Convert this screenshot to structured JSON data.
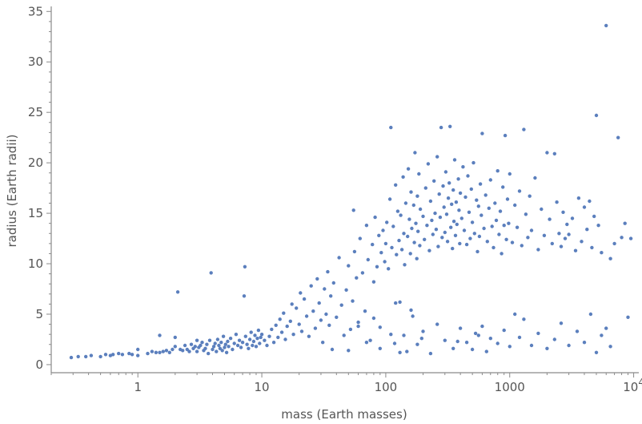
{
  "chart_data": {
    "type": "scatter",
    "title": "",
    "xlabel": "mass (Earth masses)",
    "ylabel": "radius (Earth radii)",
    "x_scale": "log",
    "xlim": [
      0.2,
      11000
    ],
    "ylim": [
      -0.8,
      35.5
    ],
    "x_ticks": [
      {
        "value": 1,
        "label": "1"
      },
      {
        "value": 10,
        "label": "10"
      },
      {
        "value": 100,
        "label": "100"
      },
      {
        "value": 1000,
        "label": "1000"
      },
      {
        "value": 10000,
        "label": "10",
        "exponent": "4"
      }
    ],
    "y_ticks": [
      0,
      5,
      10,
      15,
      20,
      25,
      30,
      35
    ],
    "grid": false,
    "point_color": "#5b7fbd",
    "points": [
      [
        0.29,
        0.7
      ],
      [
        0.33,
        0.8
      ],
      [
        0.38,
        0.8
      ],
      [
        0.42,
        0.9
      ],
      [
        0.5,
        0.8
      ],
      [
        0.55,
        1.0
      ],
      [
        0.6,
        0.9
      ],
      [
        0.63,
        1.0
      ],
      [
        0.7,
        1.1
      ],
      [
        0.75,
        1.0
      ],
      [
        0.85,
        1.1
      ],
      [
        0.9,
        1.0
      ],
      [
        1.0,
        0.9
      ],
      [
        1.0,
        1.5
      ],
      [
        1.2,
        1.1
      ],
      [
        1.3,
        1.3
      ],
      [
        1.4,
        1.2
      ],
      [
        1.5,
        1.2
      ],
      [
        1.5,
        2.9
      ],
      [
        1.6,
        1.3
      ],
      [
        1.7,
        1.4
      ],
      [
        1.8,
        1.2
      ],
      [
        1.9,
        1.5
      ],
      [
        2.0,
        1.8
      ],
      [
        2.0,
        2.7
      ],
      [
        2.1,
        7.2
      ],
      [
        2.2,
        1.5
      ],
      [
        2.3,
        1.4
      ],
      [
        2.4,
        1.9
      ],
      [
        2.5,
        1.5
      ],
      [
        2.6,
        1.3
      ],
      [
        2.7,
        2.0
      ],
      [
        2.8,
        1.6
      ],
      [
        2.9,
        1.8
      ],
      [
        3.0,
        1.3
      ],
      [
        3.0,
        2.4
      ],
      [
        3.1,
        1.7
      ],
      [
        3.2,
        1.9
      ],
      [
        3.3,
        2.2
      ],
      [
        3.4,
        1.4
      ],
      [
        3.5,
        1.6
      ],
      [
        3.6,
        2.0
      ],
      [
        3.7,
        1.1
      ],
      [
        3.8,
        2.4
      ],
      [
        3.9,
        9.1
      ],
      [
        4.0,
        1.5
      ],
      [
        4.1,
        1.8
      ],
      [
        4.2,
        2.1
      ],
      [
        4.3,
        1.3
      ],
      [
        4.4,
        2.5
      ],
      [
        4.5,
        1.9
      ],
      [
        4.6,
        1.6
      ],
      [
        4.7,
        2.2
      ],
      [
        4.8,
        1.4
      ],
      [
        4.9,
        2.8
      ],
      [
        5.0,
        1.7
      ],
      [
        5.1,
        2.0
      ],
      [
        5.2,
        1.2
      ],
      [
        5.3,
        2.3
      ],
      [
        5.4,
        1.8
      ],
      [
        5.6,
        2.6
      ],
      [
        5.8,
        1.5
      ],
      [
        6.0,
        2.1
      ],
      [
        6.2,
        3.0
      ],
      [
        6.4,
        1.9
      ],
      [
        6.6,
        2.4
      ],
      [
        6.8,
        1.7
      ],
      [
        7.0,
        2.2
      ],
      [
        7.2,
        6.8
      ],
      [
        7.3,
        9.7
      ],
      [
        7.4,
        2.8
      ],
      [
        7.6,
        2.0
      ],
      [
        7.8,
        1.6
      ],
      [
        8.0,
        2.5
      ],
      [
        8.2,
        3.2
      ],
      [
        8.4,
        1.9
      ],
      [
        8.6,
        2.3
      ],
      [
        8.8,
        2.9
      ],
      [
        9.0,
        1.8
      ],
      [
        9.2,
        2.6
      ],
      [
        9.4,
        3.4
      ],
      [
        9.6,
        2.1
      ],
      [
        9.8,
        2.7
      ],
      [
        10,
        3.0
      ],
      [
        10.5,
        2.4
      ],
      [
        11,
        1.9
      ],
      [
        11.5,
        2.8
      ],
      [
        12,
        3.5
      ],
      [
        12.5,
        2.2
      ],
      [
        13,
        3.9
      ],
      [
        13.5,
        2.7
      ],
      [
        14,
        4.5
      ],
      [
        14.5,
        3.2
      ],
      [
        15,
        5.1
      ],
      [
        15.5,
        2.5
      ],
      [
        16,
        3.8
      ],
      [
        17,
        4.3
      ],
      [
        17.5,
        6.0
      ],
      [
        18,
        3.0
      ],
      [
        19,
        5.6
      ],
      [
        20,
        4.0
      ],
      [
        20.5,
        7.1
      ],
      [
        21,
        3.3
      ],
      [
        22,
        6.5
      ],
      [
        23,
        4.8
      ],
      [
        24,
        2.8
      ],
      [
        25,
        7.8
      ],
      [
        26,
        5.3
      ],
      [
        27,
        3.6
      ],
      [
        28,
        8.5
      ],
      [
        29,
        6.1
      ],
      [
        30,
        4.4
      ],
      [
        31,
        2.2
      ],
      [
        32,
        7.5
      ],
      [
        33,
        5.0
      ],
      [
        34,
        9.2
      ],
      [
        35,
        3.9
      ],
      [
        36,
        6.8
      ],
      [
        37,
        1.5
      ],
      [
        38,
        8.1
      ],
      [
        40,
        4.7
      ],
      [
        42,
        10.6
      ],
      [
        44,
        5.9
      ],
      [
        46,
        2.9
      ],
      [
        48,
        7.4
      ],
      [
        50,
        9.8
      ],
      [
        52,
        3.5
      ],
      [
        54,
        6.3
      ],
      [
        55,
        15.3
      ],
      [
        56,
        11.2
      ],
      [
        58,
        8.6
      ],
      [
        60,
        4.2
      ],
      [
        62,
        12.5
      ],
      [
        65,
        9.1
      ],
      [
        68,
        5.3
      ],
      [
        70,
        13.8
      ],
      [
        72,
        10.4
      ],
      [
        75,
        2.4
      ],
      [
        78,
        11.9
      ],
      [
        80,
        8.2
      ],
      [
        82,
        14.6
      ],
      [
        85,
        9.7
      ],
      [
        88,
        12.8
      ],
      [
        90,
        3.7
      ],
      [
        92,
        11.1
      ],
      [
        95,
        13.3
      ],
      [
        98,
        10.2
      ],
      [
        100,
        12.0
      ],
      [
        102,
        14.1
      ],
      [
        105,
        9.5
      ],
      [
        108,
        16.4
      ],
      [
        110,
        23.5
      ],
      [
        112,
        11.6
      ],
      [
        115,
        13.7
      ],
      [
        118,
        2.1
      ],
      [
        120,
        17.8
      ],
      [
        122,
        10.9
      ],
      [
        125,
        15.2
      ],
      [
        128,
        12.3
      ],
      [
        130,
        6.2
      ],
      [
        132,
        14.8
      ],
      [
        135,
        11.4
      ],
      [
        138,
        18.6
      ],
      [
        140,
        13.0
      ],
      [
        142,
        9.9
      ],
      [
        145,
        16.0
      ],
      [
        148,
        1.3
      ],
      [
        150,
        12.7
      ],
      [
        152,
        19.4
      ],
      [
        155,
        14.4
      ],
      [
        158,
        11.0
      ],
      [
        160,
        17.1
      ],
      [
        162,
        13.5
      ],
      [
        165,
        4.8
      ],
      [
        168,
        15.8
      ],
      [
        170,
        12.1
      ],
      [
        172,
        21.0
      ],
      [
        175,
        14.0
      ],
      [
        178,
        10.5
      ],
      [
        180,
        16.7
      ],
      [
        182,
        13.2
      ],
      [
        185,
        18.9
      ],
      [
        188,
        11.8
      ],
      [
        190,
        15.4
      ],
      [
        195,
        2.6
      ],
      [
        200,
        14.7
      ],
      [
        205,
        12.4
      ],
      [
        210,
        17.5
      ],
      [
        215,
        13.8
      ],
      [
        220,
        19.9
      ],
      [
        225,
        11.3
      ],
      [
        230,
        16.2
      ],
      [
        235,
        14.3
      ],
      [
        240,
        12.9
      ],
      [
        245,
        18.2
      ],
      [
        250,
        15.0
      ],
      [
        255,
        13.4
      ],
      [
        260,
        20.6
      ],
      [
        265,
        11.7
      ],
      [
        270,
        16.9
      ],
      [
        275,
        14.6
      ],
      [
        280,
        23.5
      ],
      [
        285,
        12.6
      ],
      [
        290,
        17.7
      ],
      [
        295,
        15.6
      ],
      [
        300,
        13.1
      ],
      [
        305,
        19.1
      ],
      [
        310,
        14.9
      ],
      [
        315,
        12.2
      ],
      [
        320,
        16.5
      ],
      [
        325,
        18.0
      ],
      [
        330,
        23.6
      ],
      [
        335,
        13.6
      ],
      [
        340,
        15.9
      ],
      [
        345,
        11.5
      ],
      [
        350,
        17.3
      ],
      [
        355,
        14.2
      ],
      [
        360,
        20.3
      ],
      [
        365,
        12.8
      ],
      [
        370,
        16.1
      ],
      [
        375,
        13.9
      ],
      [
        380,
        2.3
      ],
      [
        385,
        18.4
      ],
      [
        390,
        15.3
      ],
      [
        395,
        12.0
      ],
      [
        400,
        17.0
      ],
      [
        410,
        14.5
      ],
      [
        420,
        19.6
      ],
      [
        430,
        13.3
      ],
      [
        440,
        16.6
      ],
      [
        450,
        11.9
      ],
      [
        460,
        18.7
      ],
      [
        470,
        15.1
      ],
      [
        480,
        12.5
      ],
      [
        490,
        17.4
      ],
      [
        500,
        14.1
      ],
      [
        510,
        20.0
      ],
      [
        520,
        13.0
      ],
      [
        530,
        3.1
      ],
      [
        540,
        16.3
      ],
      [
        550,
        11.2
      ],
      [
        560,
        15.7
      ],
      [
        570,
        12.7
      ],
      [
        580,
        17.9
      ],
      [
        590,
        14.8
      ],
      [
        600,
        22.9
      ],
      [
        620,
        13.5
      ],
      [
        640,
        16.8
      ],
      [
        660,
        12.2
      ],
      [
        680,
        15.5
      ],
      [
        700,
        18.3
      ],
      [
        720,
        13.7
      ],
      [
        740,
        11.6
      ],
      [
        760,
        16.0
      ],
      [
        780,
        14.3
      ],
      [
        800,
        19.2
      ],
      [
        820,
        12.9
      ],
      [
        840,
        15.2
      ],
      [
        860,
        11.0
      ],
      [
        880,
        17.6
      ],
      [
        900,
        13.8
      ],
      [
        920,
        22.7
      ],
      [
        940,
        12.4
      ],
      [
        960,
        16.4
      ],
      [
        980,
        14.0
      ],
      [
        1000,
        18.9
      ],
      [
        1050,
        12.1
      ],
      [
        1100,
        15.8
      ],
      [
        1150,
        13.6
      ],
      [
        1200,
        17.2
      ],
      [
        1250,
        11.8
      ],
      [
        1300,
        23.3
      ],
      [
        1350,
        14.9
      ],
      [
        1400,
        12.6
      ],
      [
        1450,
        16.7
      ],
      [
        1500,
        13.3
      ],
      [
        1600,
        18.5
      ],
      [
        1700,
        11.4
      ],
      [
        1800,
        15.4
      ],
      [
        1900,
        12.8
      ],
      [
        2000,
        21.0
      ],
      [
        2100,
        14.4
      ],
      [
        2200,
        12.0
      ],
      [
        2300,
        20.9
      ],
      [
        2400,
        16.1
      ],
      [
        2500,
        13.0
      ],
      [
        2600,
        11.7
      ],
      [
        2700,
        15.1
      ],
      [
        2800,
        12.5
      ],
      [
        2900,
        13.9
      ],
      [
        3000,
        12.9
      ],
      [
        3200,
        14.5
      ],
      [
        3400,
        11.3
      ],
      [
        3600,
        16.5
      ],
      [
        3800,
        12.2
      ],
      [
        4000,
        15.6
      ],
      [
        4200,
        13.4
      ],
      [
        4400,
        16.2
      ],
      [
        4600,
        11.6
      ],
      [
        4800,
        14.7
      ],
      [
        5000,
        24.7
      ],
      [
        5200,
        13.8
      ],
      [
        5500,
        11.1
      ],
      [
        6000,
        33.6
      ],
      [
        6500,
        10.5
      ],
      [
        7000,
        12.0
      ],
      [
        7500,
        22.5
      ],
      [
        8000,
        12.6
      ],
      [
        8500,
        14.0
      ],
      [
        9000,
        4.7
      ],
      [
        9500,
        12.5
      ],
      [
        50,
        1.4
      ],
      [
        60,
        3.8
      ],
      [
        70,
        2.2
      ],
      [
        80,
        4.6
      ],
      [
        90,
        1.6
      ],
      [
        110,
        3.0
      ],
      [
        120,
        6.1
      ],
      [
        130,
        1.2
      ],
      [
        140,
        2.9
      ],
      [
        160,
        5.4
      ],
      [
        180,
        2.0
      ],
      [
        200,
        3.3
      ],
      [
        230,
        1.1
      ],
      [
        260,
        4.0
      ],
      [
        300,
        2.4
      ],
      [
        350,
        1.6
      ],
      [
        400,
        3.6
      ],
      [
        450,
        2.2
      ],
      [
        500,
        1.5
      ],
      [
        560,
        2.9
      ],
      [
        600,
        3.8
      ],
      [
        650,
        1.3
      ],
      [
        700,
        2.6
      ],
      [
        800,
        2.1
      ],
      [
        900,
        3.4
      ],
      [
        1000,
        1.8
      ],
      [
        1100,
        5.0
      ],
      [
        1200,
        2.7
      ],
      [
        1300,
        4.5
      ],
      [
        1500,
        1.9
      ],
      [
        1700,
        3.1
      ],
      [
        2000,
        1.6
      ],
      [
        2300,
        2.5
      ],
      [
        2600,
        4.1
      ],
      [
        3000,
        1.9
      ],
      [
        3500,
        3.3
      ],
      [
        4000,
        2.2
      ],
      [
        4500,
        5.0
      ],
      [
        5000,
        1.2
      ],
      [
        5500,
        2.9
      ],
      [
        6000,
        3.6
      ],
      [
        6500,
        1.8
      ]
    ]
  }
}
